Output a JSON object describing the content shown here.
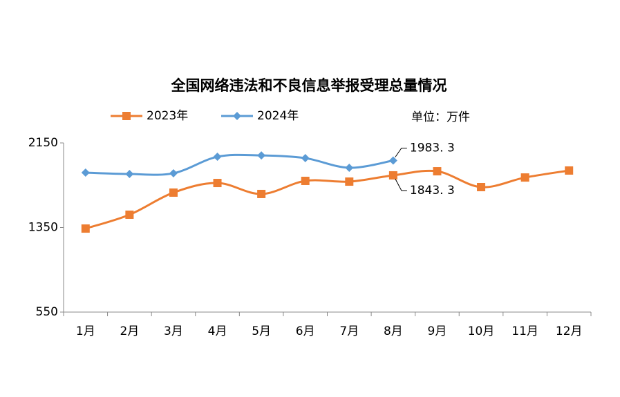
{
  "chart_data": {
    "type": "line",
    "title": "全国网络违法和不良信息举报受理总量情况",
    "unit_note": "单位：万件",
    "categories": [
      "1月",
      "2月",
      "3月",
      "4月",
      "5月",
      "6月",
      "7月",
      "8月",
      "9月",
      "10月",
      "11月",
      "12月"
    ],
    "series": [
      {
        "name": "2023年",
        "color": "#ed7d31",
        "marker": "square",
        "values": [
          1340,
          1471,
          1680,
          1771,
          1667,
          1791,
          1784,
          1843.3,
          1882,
          1732,
          1823,
          1889
        ],
        "value_labels": [
          null,
          null,
          null,
          null,
          null,
          null,
          null,
          "1843. 3",
          null,
          null,
          null,
          null
        ]
      },
      {
        "name": "2024年",
        "color": "#5b9bd5",
        "marker": "diamond",
        "values": [
          1869,
          1856,
          1863,
          2019,
          2032,
          2006,
          1915,
          1983.3,
          null,
          null,
          null,
          null
        ],
        "value_labels": [
          null,
          null,
          null,
          null,
          null,
          null,
          null,
          "1983. 3",
          null,
          null,
          null,
          null
        ]
      }
    ],
    "ylim": [
      550,
      2150
    ],
    "yticks": [
      550,
      1350,
      2150
    ],
    "grid": false,
    "legend": "top"
  }
}
